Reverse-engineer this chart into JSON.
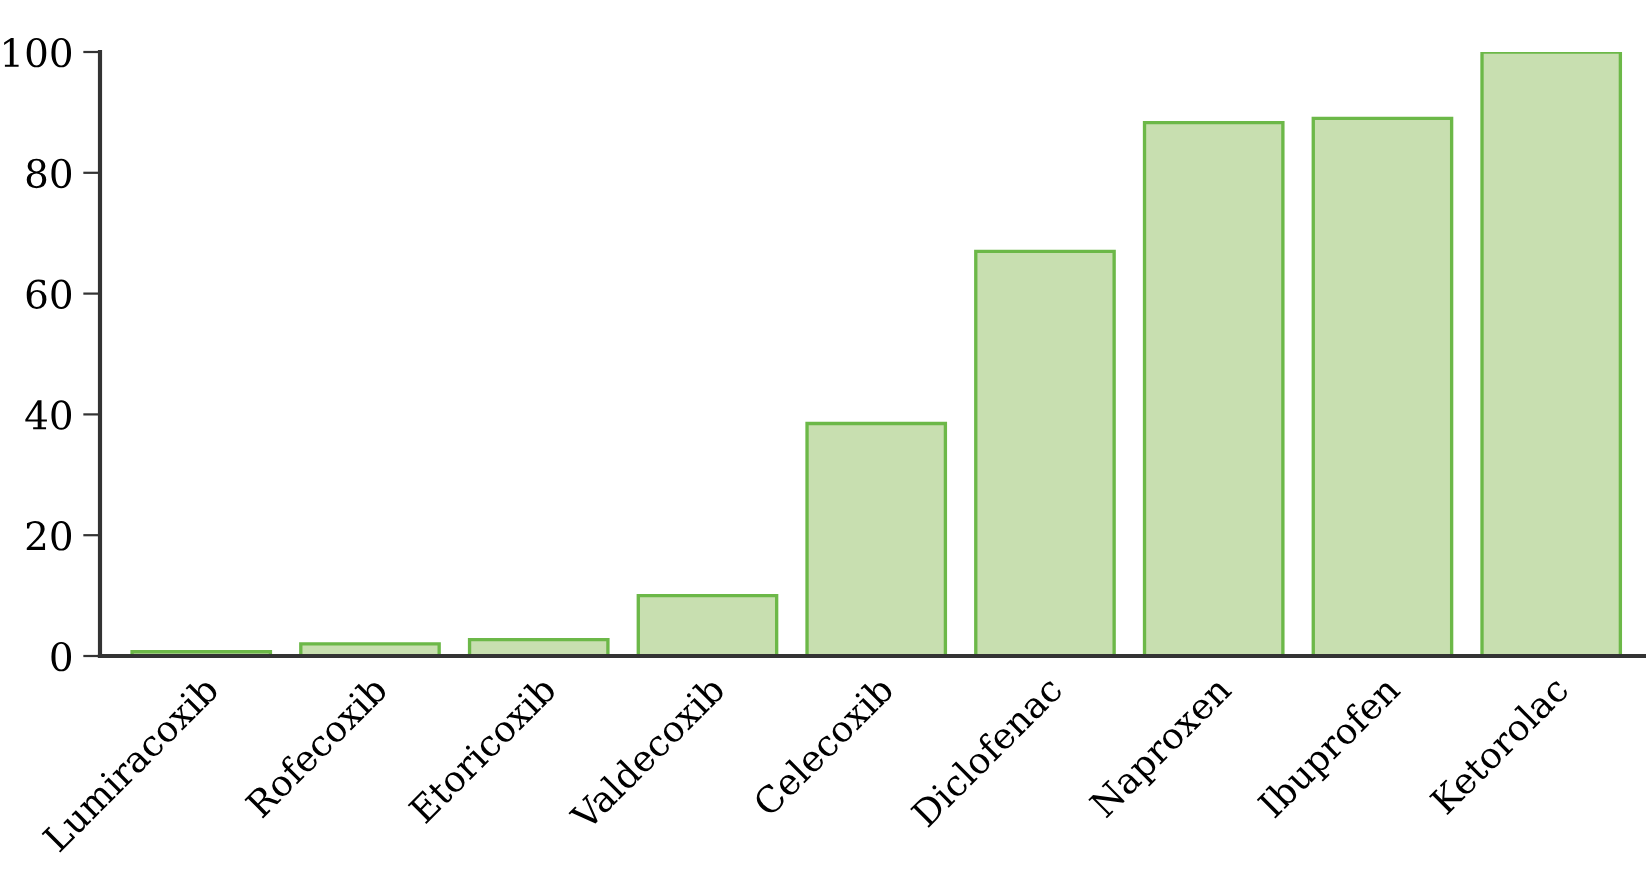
{
  "chart_data": {
    "type": "bar",
    "categories": [
      "Lumiracoxib",
      "Rofecoxib",
      "Etoricoxib",
      "Valdecoxib",
      "Celecoxib",
      "Diclofenac",
      "Naproxen",
      "Ibuprofen",
      "Ketorolac"
    ],
    "values": [
      0.7,
      2,
      2.7,
      10,
      38.5,
      67,
      88.3,
      89,
      100
    ],
    "color": "#c8dfb0",
    "ylim": [
      0,
      100
    ],
    "yticks": [
      0,
      20,
      40,
      60,
      80,
      100
    ],
    "grid": false
  }
}
